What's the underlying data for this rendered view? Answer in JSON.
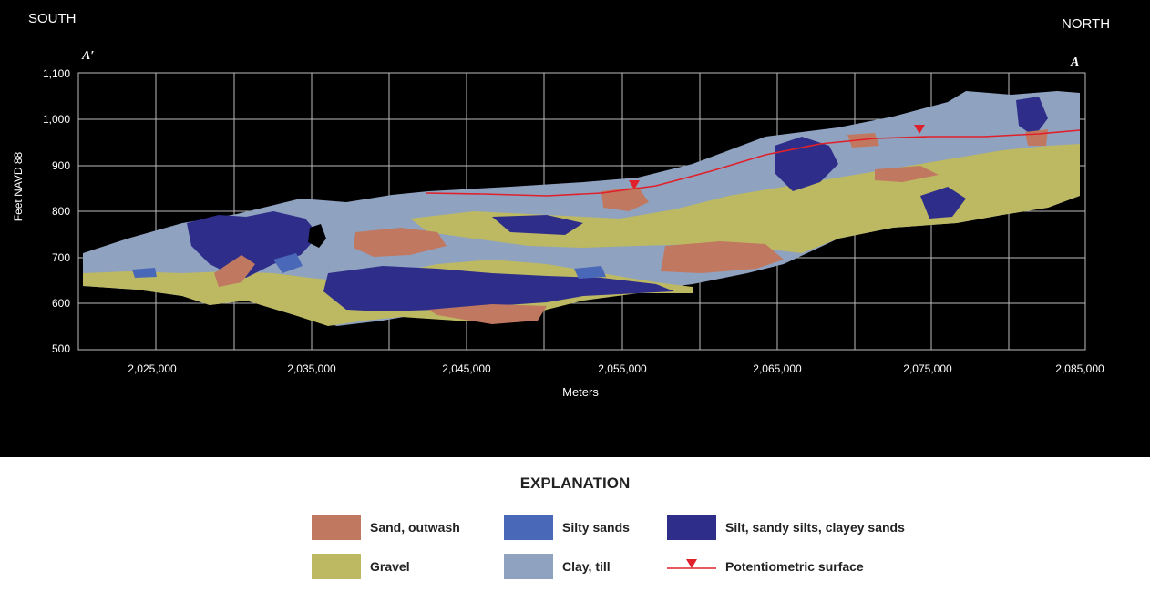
{
  "figure": {
    "south_label": "SOUTH",
    "north_label": "NORTH",
    "left_end_label": "A′",
    "right_end_label": "A",
    "y_axis_label": "Feet NAVD 88",
    "x_axis_label": "Meters",
    "y_ticks": [
      "1,100",
      "1,000",
      "900",
      "800",
      "700",
      "600",
      "500"
    ],
    "x_ticks": [
      "2,025,000",
      "2,035,000",
      "2,045,000",
      "2,055,000",
      "2,065,000",
      "2,075,000",
      "2,085,000"
    ]
  },
  "explanation": {
    "title": "EXPLANATION",
    "items": [
      {
        "label": "Sand, outwash",
        "color": "#c07860"
      },
      {
        "label": "Silty sands",
        "color": "#4a68b8"
      },
      {
        "label": "Silt, sandy silts, clayey sands",
        "color": "#2e2e8a"
      },
      {
        "label": "Gravel",
        "color": "#bdb862"
      },
      {
        "label": "Clay, till",
        "color": "#8fa2c0"
      },
      {
        "label": "Potentiometric surface",
        "color": "#e0202a"
      }
    ]
  }
}
